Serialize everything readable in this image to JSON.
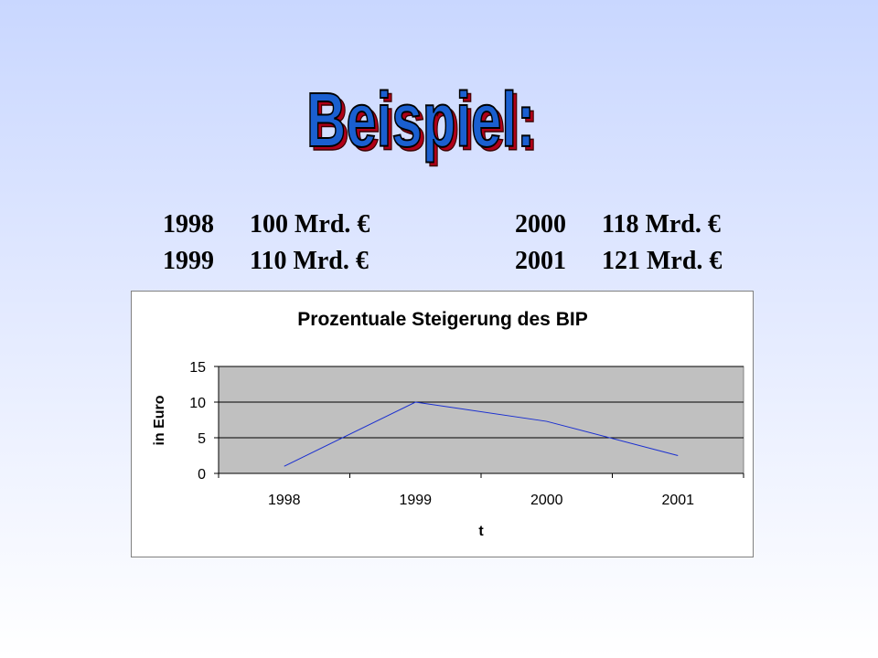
{
  "slide": {
    "title": "Beispiel:",
    "title_fill": "#1a5fd0",
    "title_shadow": "#b00018"
  },
  "gdp_table": {
    "rows": [
      {
        "year_a": "1998",
        "value_a": "100 Mrd. €",
        "year_b": "2000",
        "value_b": "118 Mrd. €"
      },
      {
        "year_a": "1999",
        "value_a": "110 Mrd. €",
        "year_b": "2001",
        "value_b": "121 Mrd. €"
      }
    ]
  },
  "chart_data": {
    "type": "line",
    "title": "Prozentuale Steigerung des BIP",
    "xlabel": "t",
    "ylabel": "in Euro",
    "categories": [
      "1998",
      "1999",
      "2000",
      "2001"
    ],
    "series": [
      {
        "values": [
          1,
          10,
          7.3,
          2.5
        ],
        "color": "#1a2fd0"
      }
    ],
    "ylim": [
      0,
      15
    ],
    "yticks": [
      0,
      5,
      10,
      15
    ],
    "grid": true,
    "plot_background": "#c0c0c0",
    "legend": "none"
  }
}
